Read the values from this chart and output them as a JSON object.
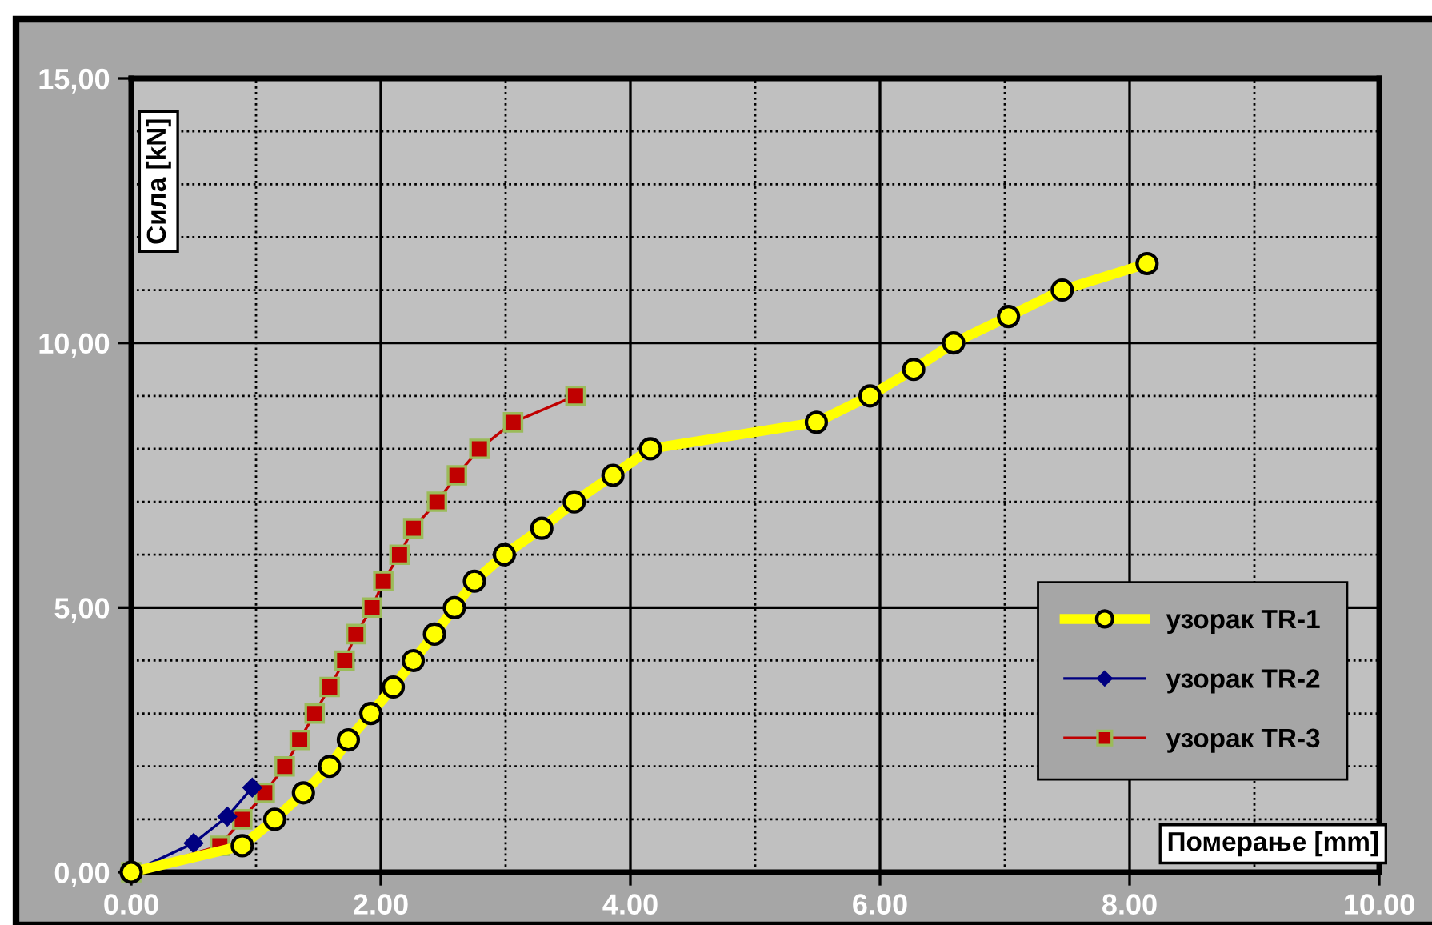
{
  "chart_data": {
    "type": "line",
    "xlabel": "Померање [mm]",
    "ylabel": "Сила [kN]",
    "xlim": [
      0,
      10
    ],
    "ylim": [
      0,
      15
    ],
    "xticks": [
      {
        "value": 0,
        "label": "0.00"
      },
      {
        "value": 1,
        "label": null
      },
      {
        "value": 2,
        "label": "2.00"
      },
      {
        "value": 3,
        "label": null
      },
      {
        "value": 4,
        "label": "4.00"
      },
      {
        "value": 5,
        "label": null
      },
      {
        "value": 6,
        "label": "6.00"
      },
      {
        "value": 7,
        "label": null
      },
      {
        "value": 8,
        "label": "8.00"
      },
      {
        "value": 9,
        "label": null
      },
      {
        "value": 10,
        "label": "10.00"
      }
    ],
    "yticks": [
      {
        "value": 0,
        "label": "0,00"
      },
      {
        "value": 1,
        "label": null
      },
      {
        "value": 2,
        "label": null
      },
      {
        "value": 3,
        "label": null
      },
      {
        "value": 4,
        "label": null
      },
      {
        "value": 5,
        "label": "5,00"
      },
      {
        "value": 6,
        "label": null
      },
      {
        "value": 7,
        "label": null
      },
      {
        "value": 8,
        "label": null
      },
      {
        "value": 9,
        "label": null
      },
      {
        "value": 10,
        "label": "10,00"
      },
      {
        "value": 11,
        "label": null
      },
      {
        "value": 12,
        "label": null
      },
      {
        "value": 13,
        "label": null
      },
      {
        "value": 14,
        "label": null
      },
      {
        "value": 15,
        "label": "15,00"
      }
    ],
    "grid": true,
    "legend": "bottom right",
    "series": [
      {
        "name": "узорак TR-1",
        "color": "#ffff00",
        "marker": "circle",
        "x": [
          0,
          0.89,
          1.15,
          1.38,
          1.59,
          1.74,
          1.92,
          2.1,
          2.26,
          2.43,
          2.59,
          2.75,
          2.99,
          3.29,
          3.55,
          3.86,
          4.16,
          5.49,
          5.92,
          6.27,
          6.59,
          7.03,
          7.46,
          8.14
        ],
        "values": [
          0,
          0.5,
          1.0,
          1.5,
          2.0,
          2.5,
          3.0,
          3.5,
          4.0,
          4.5,
          5.0,
          5.5,
          6.0,
          6.5,
          7.0,
          7.5,
          8.0,
          8.5,
          9.0,
          9.5,
          10.0,
          10.5,
          11.0,
          11.5
        ]
      },
      {
        "name": "узорак TR-2",
        "color": "#000080",
        "marker": "diamond",
        "x": [
          0,
          0.5,
          0.77,
          0.97
        ],
        "values": [
          0,
          0.55,
          1.05,
          1.6
        ]
      },
      {
        "name": "узорак TR-3",
        "color": "#c00000",
        "marker": "square",
        "x": [
          0,
          0.71,
          0.89,
          1.07,
          1.23,
          1.35,
          1.47,
          1.59,
          1.71,
          1.8,
          1.93,
          2.02,
          2.15,
          2.26,
          2.45,
          2.61,
          2.79,
          3.06,
          3.56
        ],
        "values": [
          0,
          0.5,
          1.0,
          1.5,
          2.0,
          2.5,
          3.0,
          3.5,
          4.0,
          4.5,
          5.0,
          5.5,
          6.0,
          6.5,
          7.0,
          7.5,
          8.0,
          8.5,
          9.0
        ]
      }
    ]
  }
}
